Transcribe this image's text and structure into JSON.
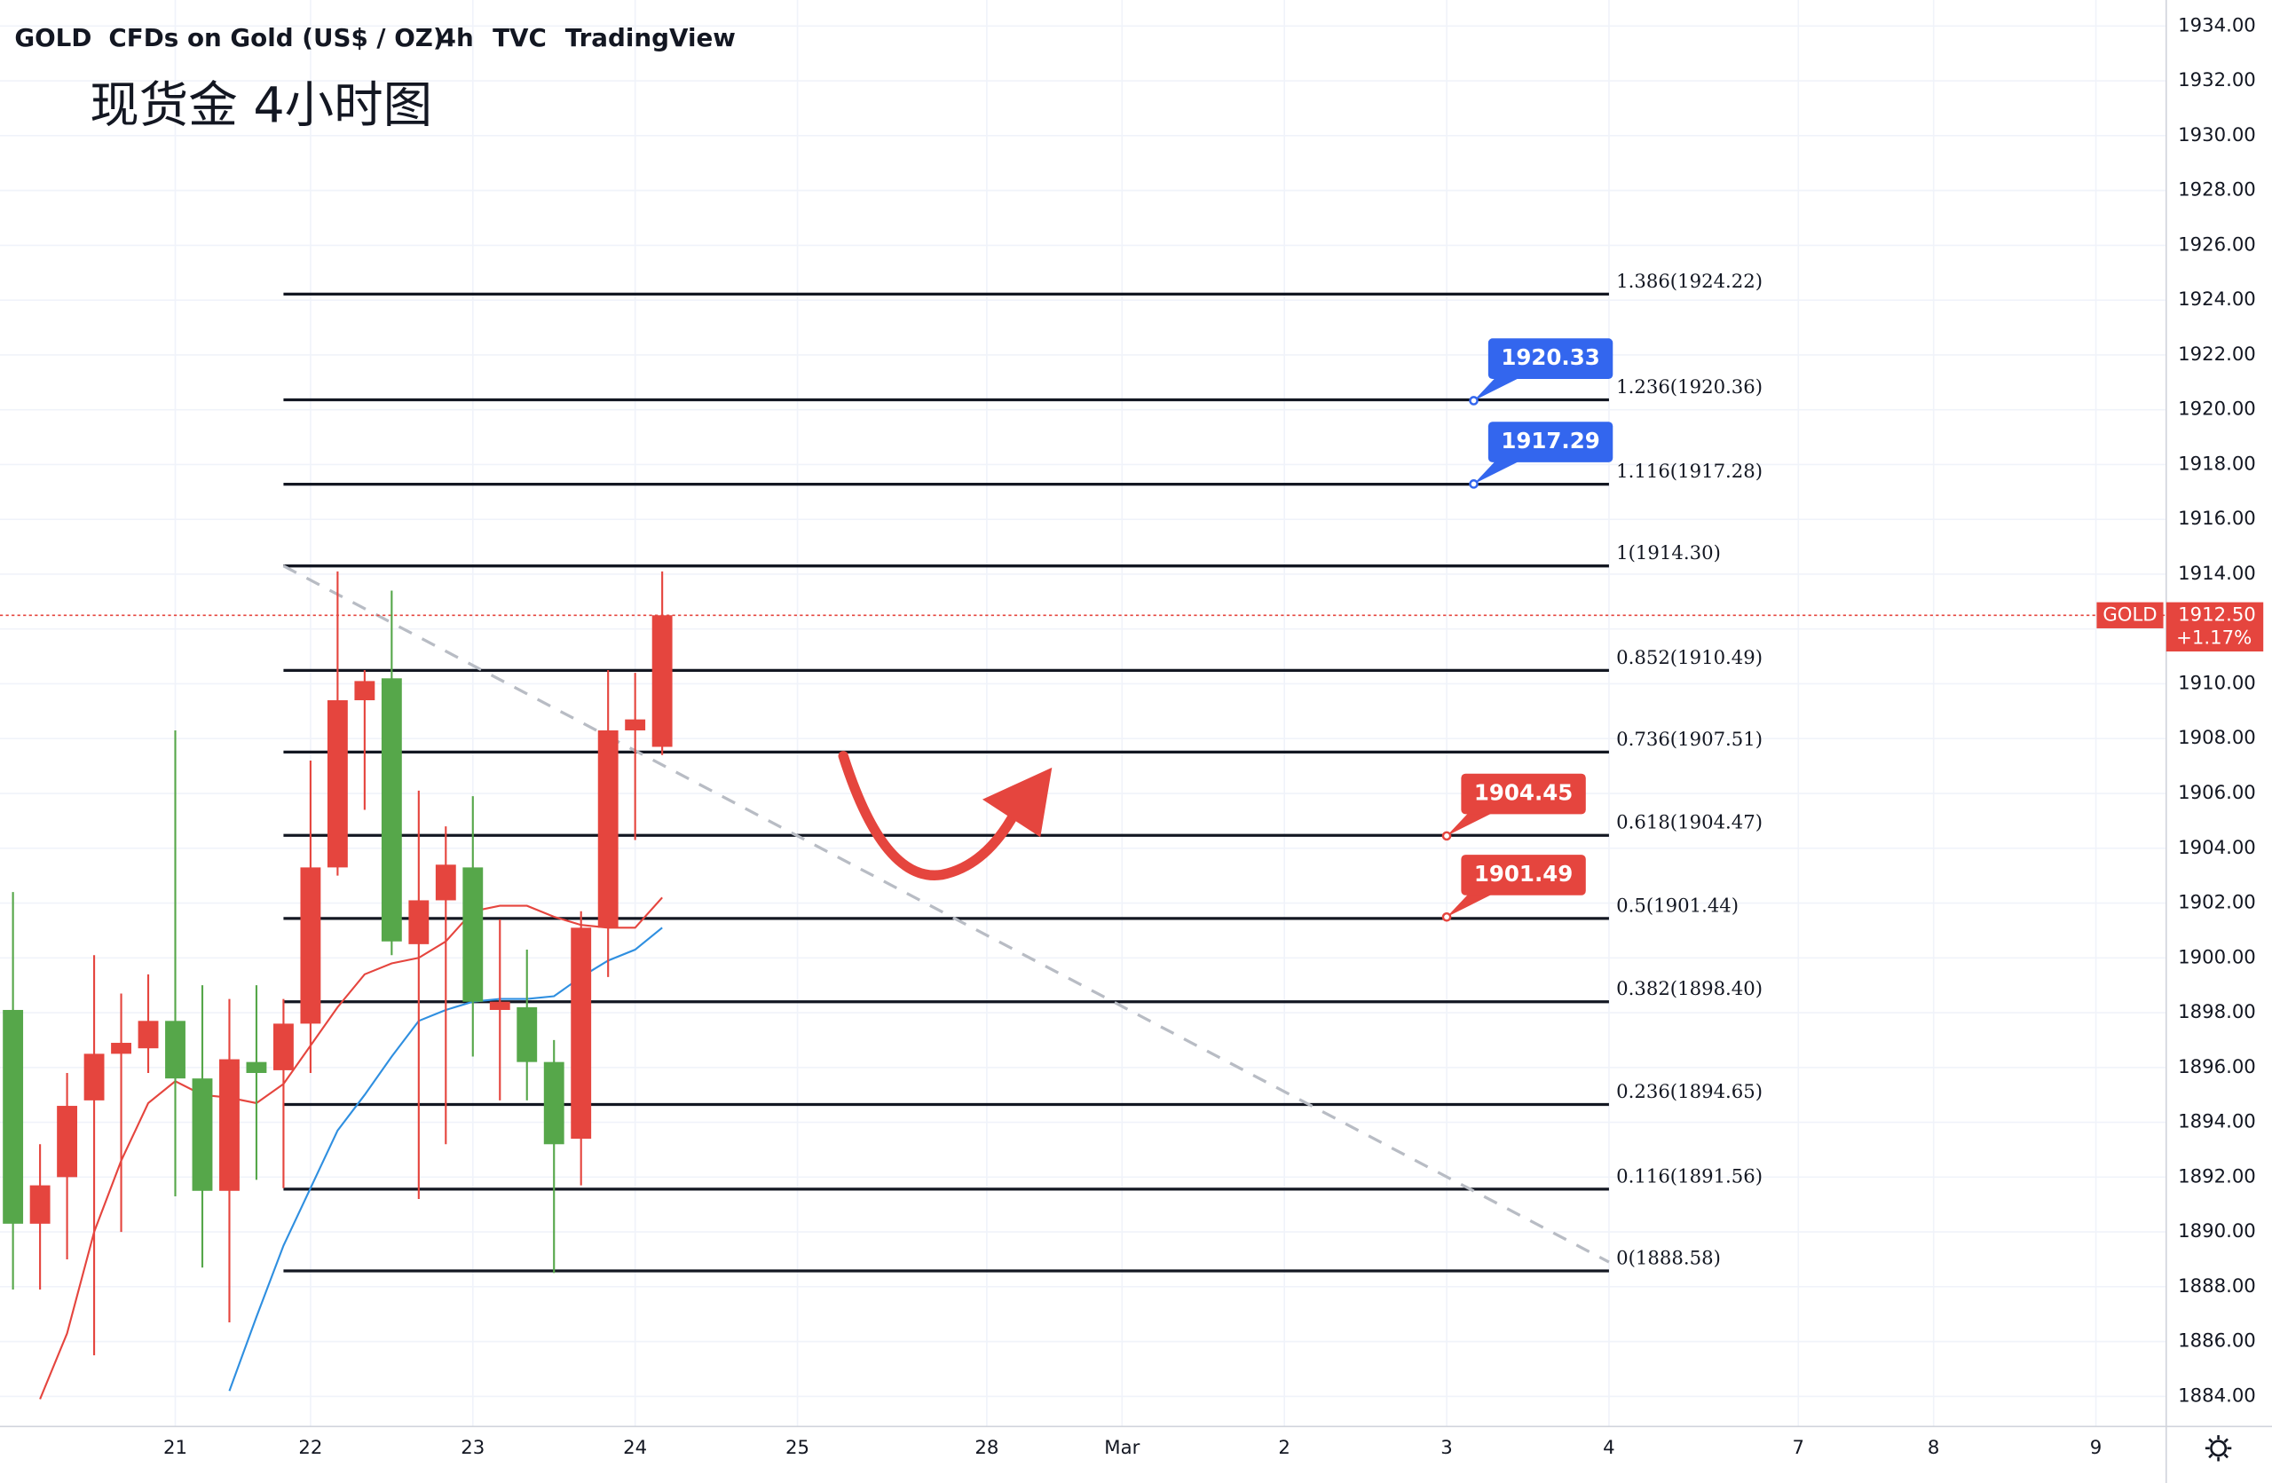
{
  "chart_data": {
    "type": "candlestick",
    "symbol": "GOLD",
    "name": "CFDs on Gold (US$ / OZ)",
    "interval": "4h",
    "exchange": "TVC",
    "source": "TradingView",
    "annotation": "现货金 4小时图",
    "up_color": "#e5453e",
    "down_color": "#56a74a",
    "open": [
      1898.1,
      1890.3,
      1892.0,
      1894.8,
      1896.5,
      1896.7,
      1897.7,
      1895.6,
      1891.5,
      1896.2,
      1895.9,
      1897.6,
      1903.3,
      1909.4,
      1910.2,
      1900.5,
      1902.1,
      1903.3,
      1898.1,
      1898.2,
      1896.2,
      1893.4,
      1901.1,
      1908.3,
      1907.7
    ],
    "high": [
      1902.4,
      1893.2,
      1895.8,
      1900.1,
      1898.7,
      1899.4,
      1908.3,
      1899.0,
      1898.5,
      1899.0,
      1898.5,
      1907.2,
      1914.1,
      1910.5,
      1913.4,
      1906.1,
      1904.8,
      1905.9,
      1901.4,
      1900.3,
      1897.0,
      1901.7,
      1910.5,
      1910.4,
      1914.1
    ],
    "low": [
      1887.9,
      1887.9,
      1889.0,
      1885.5,
      1890.0,
      1895.8,
      1891.3,
      1888.7,
      1886.7,
      1891.9,
      1891.6,
      1895.8,
      1903.0,
      1905.4,
      1900.1,
      1891.2,
      1893.2,
      1896.4,
      1894.8,
      1894.8,
      1888.5,
      1891.7,
      1899.3,
      1904.3,
      1907.4
    ],
    "close": [
      1890.3,
      1891.7,
      1894.6,
      1896.5,
      1896.9,
      1897.7,
      1895.6,
      1891.5,
      1896.3,
      1895.8,
      1897.6,
      1903.3,
      1909.4,
      1910.1,
      1900.6,
      1902.1,
      1903.4,
      1898.4,
      1898.4,
      1896.2,
      1893.2,
      1901.1,
      1908.3,
      1908.7,
      1912.5
    ],
    "moving_averages": [
      {
        "color": "#e5453e",
        "values": [
          null,
          1883.9,
          1886.3,
          1890.0,
          1892.6,
          1894.7,
          1895.5,
          1895.0,
          1894.9,
          1894.7,
          1895.4,
          1896.8,
          1898.2,
          1899.4,
          1899.8,
          1900.0,
          1900.6,
          1901.7,
          1901.9,
          1901.9,
          1901.5,
          1901.2,
          1901.1,
          1901.1,
          1902.2
        ]
      },
      {
        "color": "#2f8fe0",
        "values": [
          null,
          null,
          null,
          null,
          null,
          null,
          null,
          null,
          1884.2,
          1886.9,
          1889.5,
          1891.6,
          1893.7,
          1895.0,
          1896.4,
          1897.7,
          1898.1,
          1898.4,
          1898.5,
          1898.5,
          1898.6,
          1899.3,
          1899.9,
          1900.3,
          1901.1
        ]
      }
    ],
    "fib_x": [
      10,
      59
    ],
    "fib_levels": [
      {
        "label": "1.386(1924.22)",
        "value": 1924.22
      },
      {
        "label": "1.236(1920.36)",
        "value": 1920.36
      },
      {
        "label": "1.116(1917.28)",
        "value": 1917.28
      },
      {
        "label": "1(1914.30)",
        "value": 1914.3
      },
      {
        "label": "0.852(1910.49)",
        "value": 1910.49
      },
      {
        "label": "0.736(1907.51)",
        "value": 1907.51
      },
      {
        "label": "0.618(1904.47)",
        "value": 1904.47
      },
      {
        "label": "0.5(1901.44)",
        "value": 1901.44
      },
      {
        "label": "0.382(1898.40)",
        "value": 1898.4
      },
      {
        "label": "0.236(1894.65)",
        "value": 1894.65
      },
      {
        "label": "0.116(1891.56)",
        "value": 1891.56
      },
      {
        "label": "0(1888.58)",
        "value": 1888.58
      }
    ],
    "trendline": {
      "x": [
        10,
        59
      ],
      "y": [
        1914.3,
        1888.9
      ]
    },
    "price_callouts": [
      {
        "value": 1920.33,
        "color": "#3366ee",
        "x": 54
      },
      {
        "value": 1917.29,
        "color": "#3366ee",
        "x": 54
      },
      {
        "value": 1904.45,
        "color": "#e5453e",
        "x": 53
      },
      {
        "value": 1901.49,
        "color": "#e5453e",
        "x": 53
      }
    ],
    "last_price": {
      "tag": "GOLD",
      "value": 1912.5,
      "label": "1912.50",
      "change": "+1.17%",
      "color": "#e5453e"
    },
    "xlim": [
      -0.48,
      79.6
    ],
    "ylim": [
      1882.9,
      1934.95
    ],
    "xticks": [
      {
        "value": 6,
        "label": "21"
      },
      {
        "value": 11,
        "label": "22"
      },
      {
        "value": 17,
        "label": "23"
      },
      {
        "value": 23,
        "label": "24"
      },
      {
        "value": 29,
        "label": "25"
      },
      {
        "value": 36,
        "label": "28"
      },
      {
        "value": 41,
        "label": "Mar"
      },
      {
        "value": 47,
        "label": "2"
      },
      {
        "value": 53,
        "label": "3"
      },
      {
        "value": 59,
        "label": "4"
      },
      {
        "value": 66,
        "label": "7"
      },
      {
        "value": 71,
        "label": "8"
      },
      {
        "value": 77,
        "label": "9"
      }
    ],
    "yticks": [
      {
        "value": 1884,
        "label": "1884.00"
      },
      {
        "value": 1886,
        "label": "1886.00"
      },
      {
        "value": 1888,
        "label": "1888.00"
      },
      {
        "value": 1890,
        "label": "1890.00"
      },
      {
        "value": 1892,
        "label": "1892.00"
      },
      {
        "value": 1894,
        "label": "1894.00"
      },
      {
        "value": 1896,
        "label": "1896.00"
      },
      {
        "value": 1898,
        "label": "1898.00"
      },
      {
        "value": 1900,
        "label": "1900.00"
      },
      {
        "value": 1902,
        "label": "1902.00"
      },
      {
        "value": 1904,
        "label": "1904.00"
      },
      {
        "value": 1906,
        "label": "1906.00"
      },
      {
        "value": 1908,
        "label": "1908.00"
      },
      {
        "value": 1910,
        "label": "1910.00"
      },
      {
        "value": 1912,
        "label": "1912.00"
      },
      {
        "value": 1914,
        "label": "1914.00"
      },
      {
        "value": 1916,
        "label": "1916.00"
      },
      {
        "value": 1918,
        "label": "1918.00"
      },
      {
        "value": 1920,
        "label": "1920.00"
      },
      {
        "value": 1922,
        "label": "1922.00"
      },
      {
        "value": 1924,
        "label": "1924.00"
      },
      {
        "value": 1926,
        "label": "1926.00"
      },
      {
        "value": 1928,
        "label": "1928.00"
      },
      {
        "value": 1930,
        "label": "1930.00"
      },
      {
        "value": 1932,
        "label": "1932.00"
      },
      {
        "value": 1934,
        "label": "1934.00"
      }
    ],
    "grid": true
  }
}
